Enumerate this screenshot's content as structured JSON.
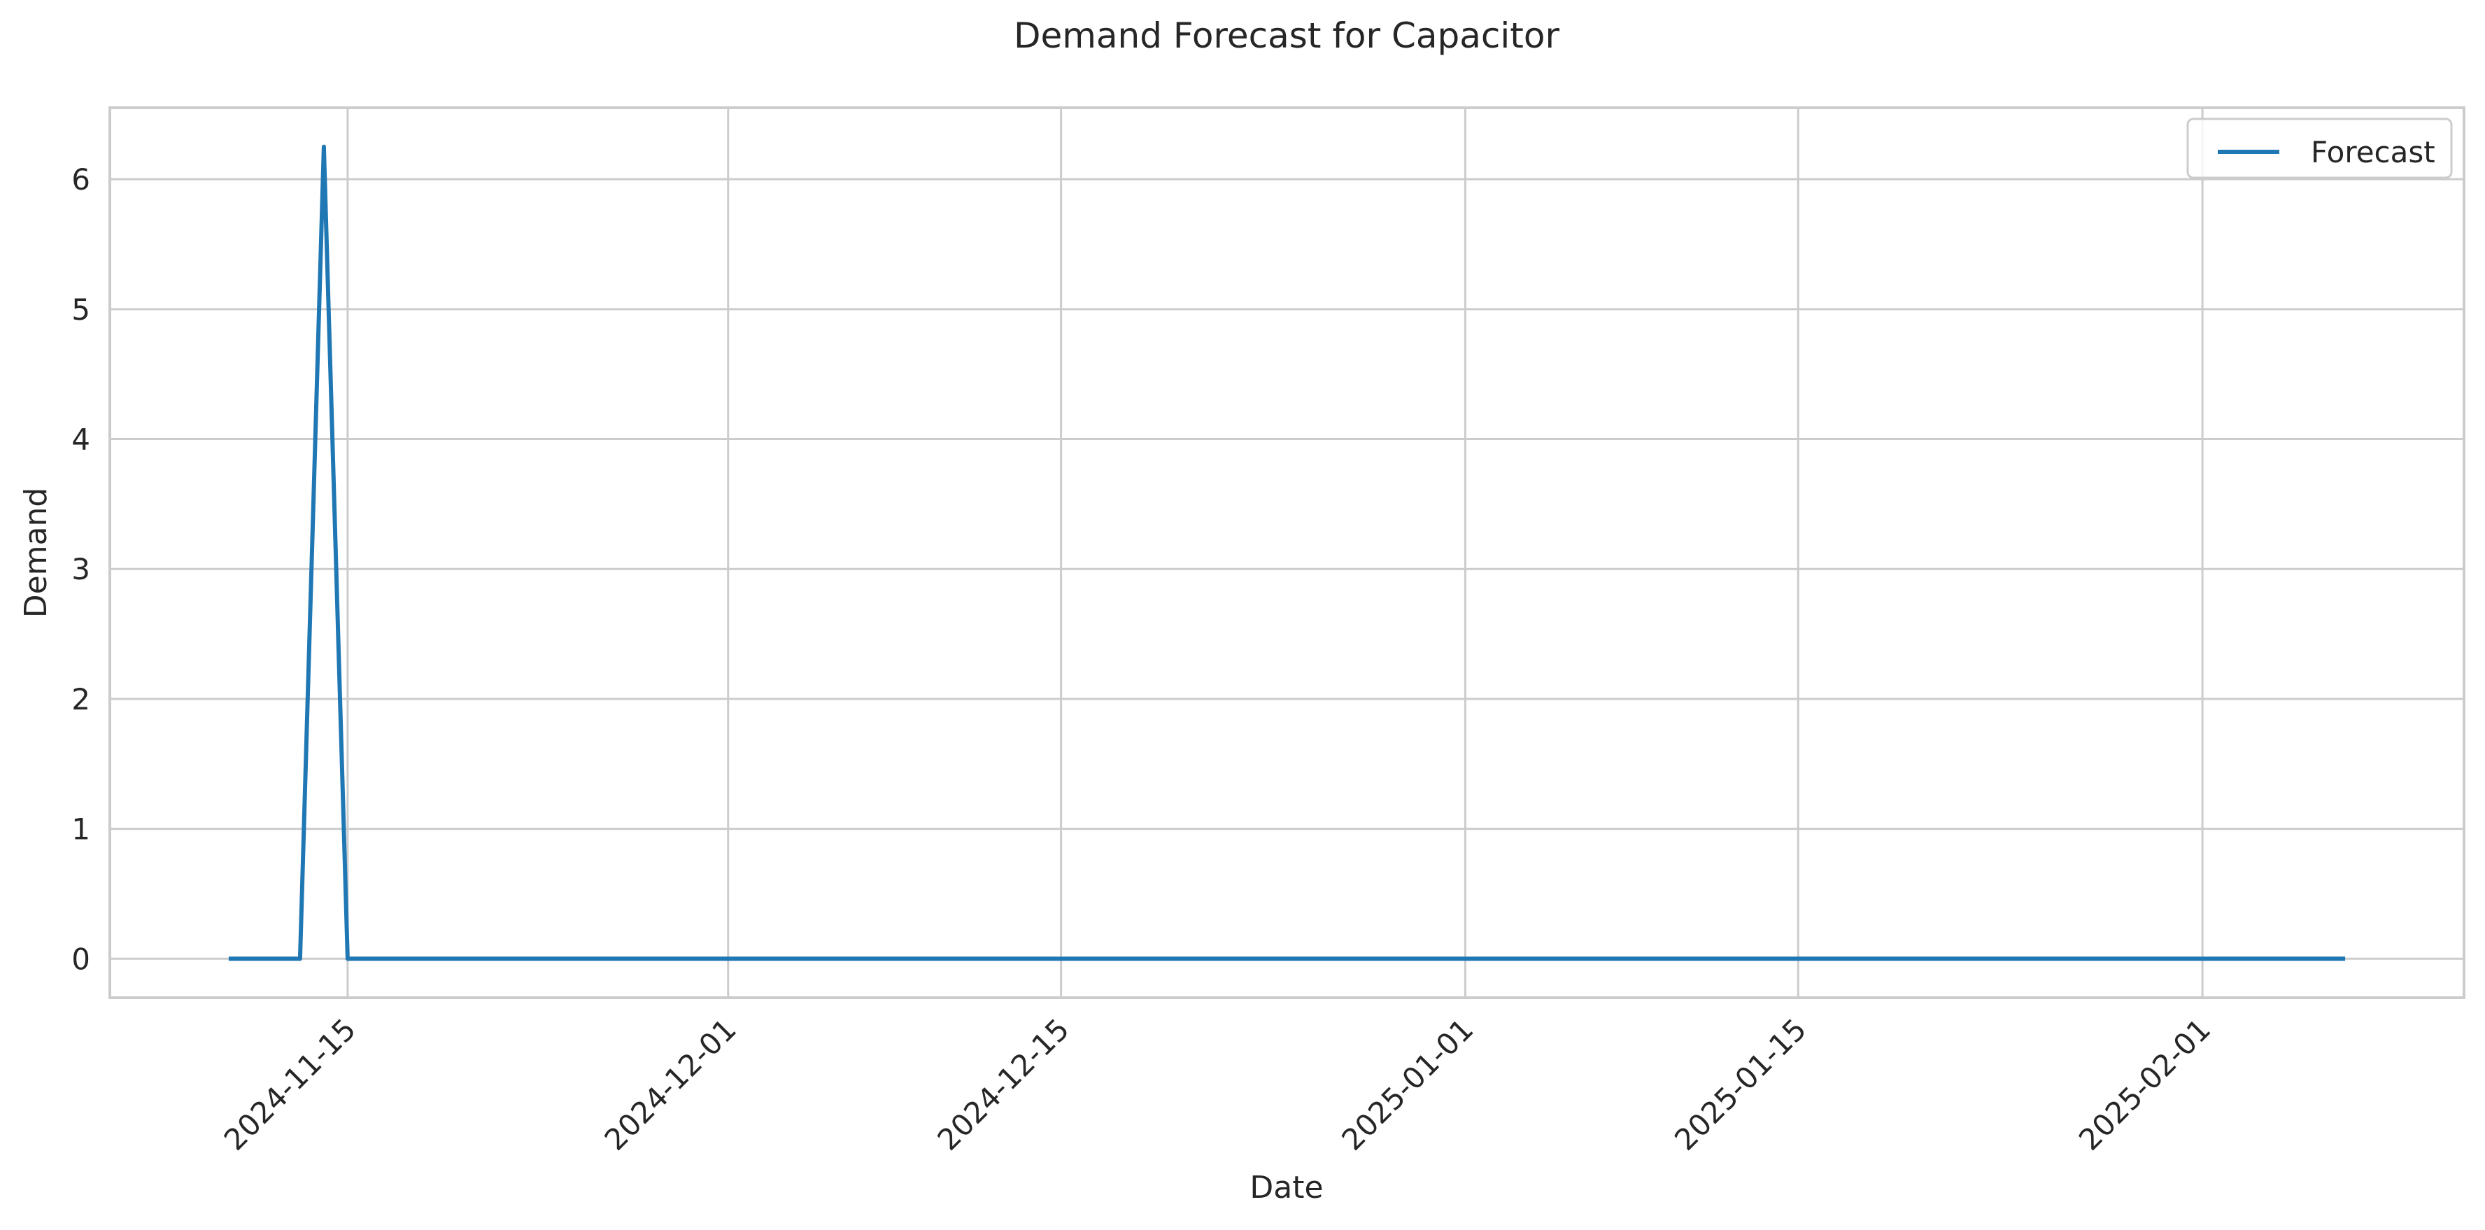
{
  "chart_data": {
    "type": "line",
    "title": "Demand Forecast for Capacitor",
    "xlabel": "Date",
    "ylabel": "Demand",
    "x_axis_type": "date",
    "xlim": [
      "2024-11-05",
      "2025-02-12"
    ],
    "ylim": [
      -0.3,
      6.55
    ],
    "x_ticks": [
      "2024-11-15",
      "2024-12-01",
      "2024-12-15",
      "2025-01-01",
      "2025-01-15",
      "2025-02-01"
    ],
    "y_ticks": [
      0,
      1,
      2,
      3,
      4,
      5,
      6
    ],
    "grid": true,
    "legend": {
      "placement": "top-right",
      "entries": [
        "Forecast"
      ]
    },
    "series": [
      {
        "name": "Forecast",
        "color": "#1f77b4",
        "points": [
          {
            "x": "2024-11-10",
            "y": 0
          },
          {
            "x": "2024-11-11",
            "y": 0
          },
          {
            "x": "2024-11-12",
            "y": 0
          },
          {
            "x": "2024-11-13",
            "y": 0
          },
          {
            "x": "2024-11-14",
            "y": 6.25
          },
          {
            "x": "2024-11-15",
            "y": 0
          },
          {
            "x": "2025-02-07",
            "y": 0
          }
        ]
      }
    ]
  }
}
